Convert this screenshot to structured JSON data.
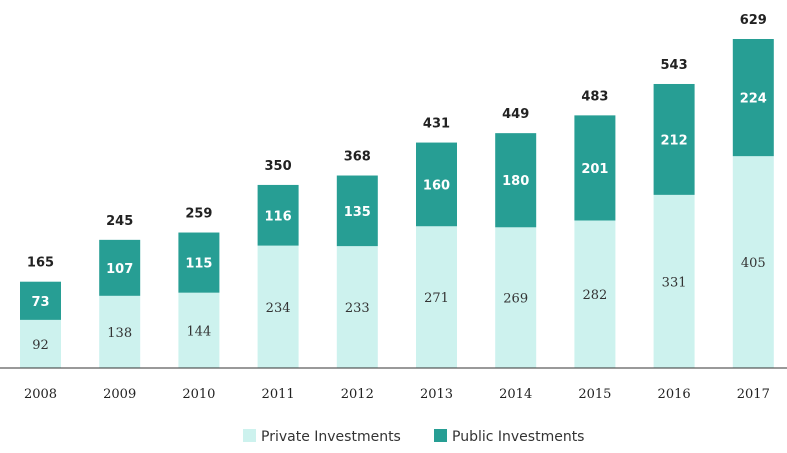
{
  "chart_data": {
    "type": "bar",
    "stacked": true,
    "categories": [
      "2008",
      "2009",
      "2010",
      "2011",
      "2012",
      "2013",
      "2014",
      "2015",
      "2016",
      "2017"
    ],
    "series": [
      {
        "name": "Private Investments",
        "values": [
          92,
          138,
          144,
          234,
          233,
          271,
          269,
          282,
          331,
          405
        ],
        "color": "#cdf2ee"
      },
      {
        "name": "Public Investments",
        "values": [
          73,
          107,
          115,
          116,
          135,
          160,
          180,
          201,
          212,
          224
        ],
        "color": "#279e94"
      }
    ],
    "totals": [
      165,
      245,
      259,
      350,
      368,
      431,
      449,
      483,
      543,
      629
    ],
    "title": "",
    "xlabel": "",
    "ylabel": "",
    "ylim": [
      0,
      629
    ],
    "grid": false,
    "legend_position": "bottom-center"
  }
}
